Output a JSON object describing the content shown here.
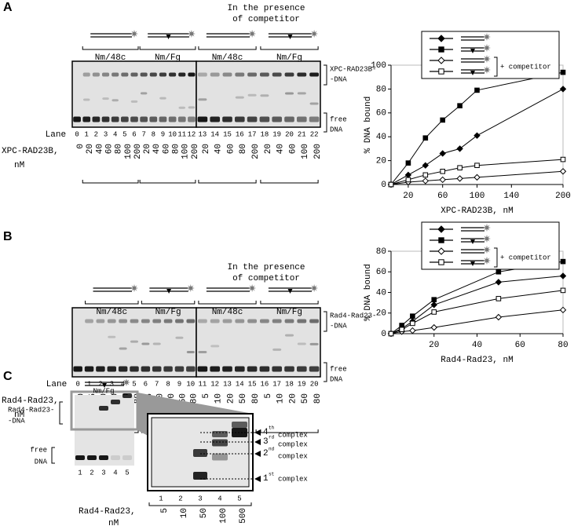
{
  "panel_a": {
    "letter": "A",
    "competitor_note": [
      "In the presence",
      "of competitor"
    ],
    "constructs": [
      "Nm/48c",
      "Nm/Fg",
      "Nm/48c",
      "Nm/Fg"
    ],
    "bound_label": [
      "XPC-RAD23B-",
      "-DNA"
    ],
    "free_label": [
      "free",
      "DNA"
    ],
    "lane_title": "Lane",
    "lanes": [
      "0",
      "1",
      "2",
      "3",
      "4",
      "5",
      "6",
      "7",
      "8",
      "9",
      "10",
      "11",
      "12",
      "13",
      "14",
      "15",
      "16",
      "17",
      "18",
      "19",
      "20",
      "21",
      "22"
    ],
    "protein_label": [
      "XPC-RAD23B,",
      "nM"
    ],
    "concentrations": [
      "0",
      "20",
      "40",
      "60",
      "80",
      "100",
      "200",
      "20",
      "40",
      "60",
      "80",
      "100",
      "200",
      "20",
      "40",
      "60",
      "80",
      "200",
      "20",
      "40",
      "60",
      "100",
      "200"
    ]
  },
  "panel_b": {
    "letter": "B",
    "competitor_note": [
      "In the presence",
      "of competitor"
    ],
    "constructs": [
      "Nm/48c",
      "Nm/Fg",
      "Nm/48c",
      "Nm/Fg"
    ],
    "bound_label": [
      "Rad4-Rad23-",
      "-DNA"
    ],
    "free_label": [
      "free",
      "DNA"
    ],
    "lane_title": "Lane",
    "lanes": [
      "0",
      "1",
      "2",
      "3",
      "4",
      "5",
      "6",
      "7",
      "8",
      "9",
      "10",
      "11",
      "12",
      "13",
      "14",
      "15",
      "16",
      "17",
      "18",
      "19",
      "20"
    ],
    "protein_label": [
      "Rad4-Rad23,",
      "nM"
    ],
    "concentrations": [
      "0",
      "5",
      "10",
      "20",
      "50",
      "80",
      "5",
      "10",
      "20",
      "50",
      "80",
      "5",
      "10",
      "20",
      "50",
      "80",
      "5",
      "10",
      "20",
      "50",
      "80"
    ]
  },
  "panel_c": {
    "letter": "C",
    "construct": "Nm/Fg",
    "bound_label": [
      "Rad4-Rad23-",
      "-DNA"
    ],
    "free_label": [
      "free",
      "DNA"
    ],
    "lanes": [
      "1",
      "2",
      "3",
      "4",
      "5"
    ],
    "zoom_lanes": [
      "1",
      "2",
      "3",
      "4",
      "5"
    ],
    "concentrations": [
      "5",
      "10",
      "50",
      "100",
      "500"
    ],
    "protein_label": [
      "Rad4-Rad23,",
      "nM"
    ],
    "complexes": [
      {
        "num": "4",
        "sup": "th",
        "label": "complex"
      },
      {
        "num": "3",
        "sup": "rd",
        "label": "complex"
      },
      {
        "num": "2",
        "sup": "nd",
        "label": "complex"
      },
      {
        "num": "1",
        "sup": "st",
        "label": "complex"
      }
    ]
  },
  "chart_data": [
    {
      "type": "line",
      "x_label": "XPC-RAD23B, nM",
      "y_label": "% DNA bound",
      "legend_note": "+ competitor",
      "x": [
        0,
        20,
        40,
        60,
        80,
        100,
        200
      ],
      "xlim": [
        0,
        200
      ],
      "xticks": [
        20,
        60,
        100,
        140,
        200
      ],
      "ylim": [
        0,
        100
      ],
      "yticks": [
        0,
        20,
        40,
        60,
        80,
        100
      ],
      "color": "#000000",
      "series": [
        {
          "marker": "diamond",
          "filled": true,
          "values": [
            0,
            8,
            16,
            26,
            30,
            41,
            80
          ]
        },
        {
          "marker": "square",
          "filled": true,
          "values": [
            0,
            18,
            39,
            54,
            66,
            79,
            94
          ]
        },
        {
          "marker": "diamond",
          "filled": false,
          "values": [
            0,
            2,
            3,
            4,
            5,
            6,
            11
          ]
        },
        {
          "marker": "square",
          "filled": false,
          "values": [
            0,
            4,
            8,
            11,
            14,
            16,
            21
          ]
        }
      ]
    },
    {
      "type": "line",
      "x_label": "Rad4-Rad23, nM",
      "y_label": "% DNA bound",
      "legend_note": "+ competitor",
      "x": [
        0,
        5,
        10,
        20,
        50,
        80
      ],
      "xlim": [
        0,
        80
      ],
      "xticks": [
        20,
        40,
        60,
        80
      ],
      "ylim": [
        0,
        80
      ],
      "yticks": [
        0,
        20,
        40,
        60,
        80
      ],
      "color": "#000000",
      "series": [
        {
          "marker": "diamond",
          "filled": true,
          "values": [
            0,
            5,
            12,
            28,
            50,
            56
          ]
        },
        {
          "marker": "square",
          "filled": true,
          "values": [
            0,
            8,
            17,
            33,
            60,
            70
          ]
        },
        {
          "marker": "diamond",
          "filled": false,
          "values": [
            0,
            2,
            3,
            6,
            16,
            23
          ]
        },
        {
          "marker": "square",
          "filled": false,
          "values": [
            0,
            4,
            10,
            21,
            34,
            42
          ]
        }
      ]
    }
  ]
}
